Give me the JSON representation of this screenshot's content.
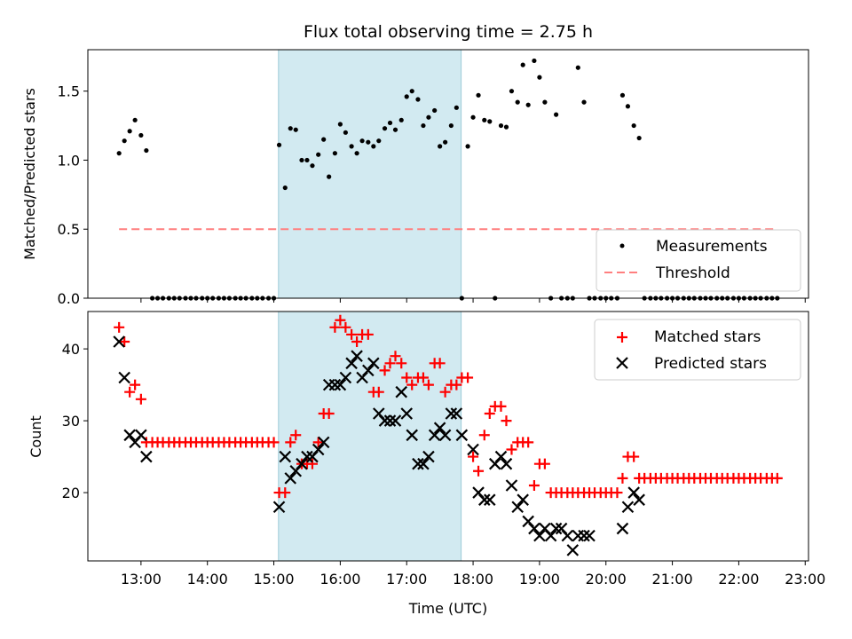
{
  "chart_data": [
    {
      "type": "scatter",
      "title": "Flux total observing time = 2.75 h",
      "xlabel": "",
      "ylabel": "Matched/Predicted stars",
      "ylim": [
        0,
        1.8
      ],
      "yticks": [
        "0.0",
        "0.5",
        "1.0",
        "1.5"
      ],
      "ytick_values": [
        0,
        0.5,
        1.0,
        1.5
      ],
      "xlim": [
        12.2,
        23.05
      ],
      "xticks_values": [
        13,
        14,
        15,
        16,
        17,
        18,
        19,
        20,
        21,
        22,
        23
      ],
      "shaded_span": [
        15.07,
        17.82
      ],
      "shaded_color": "#add8e6",
      "legend_position": "lower-right",
      "series": [
        {
          "name": "Measurements",
          "kind": "scatter",
          "color": "#000000",
          "x": [
            12.67,
            12.75,
            12.83,
            12.91,
            13.0,
            13.08,
            13.17,
            13.25,
            13.33,
            13.42,
            13.5,
            13.58,
            13.67,
            13.75,
            13.83,
            13.92,
            14.0,
            14.08,
            14.17,
            14.25,
            14.33,
            14.42,
            14.5,
            14.58,
            14.67,
            14.75,
            14.83,
            14.92,
            15.0,
            15.08,
            15.17,
            15.25,
            15.33,
            15.42,
            15.5,
            15.58,
            15.67,
            15.75,
            15.83,
            15.92,
            16.0,
            16.08,
            16.17,
            16.25,
            16.33,
            16.42,
            16.5,
            16.58,
            16.67,
            16.75,
            16.83,
            16.92,
            17.0,
            17.08,
            17.17,
            17.25,
            17.33,
            17.42,
            17.5,
            17.58,
            17.67,
            17.75,
            17.83,
            17.92,
            18.0,
            18.08,
            18.17,
            18.25,
            18.33,
            18.42,
            18.5,
            18.58,
            18.67,
            18.75,
            18.83,
            18.92,
            19.0,
            19.08,
            19.17,
            19.25,
            19.33,
            19.42,
            19.5,
            19.58,
            19.67,
            19.75,
            19.83,
            19.92,
            20.0,
            20.08,
            20.17,
            20.25,
            20.33,
            20.42,
            20.5,
            20.58,
            20.67,
            20.75,
            20.83,
            20.92,
            21.0,
            21.08,
            21.17,
            21.25,
            21.33,
            21.42,
            21.5,
            21.58,
            21.67,
            21.75,
            21.83,
            21.92,
            22.0,
            22.08,
            22.17,
            22.25,
            22.33,
            22.42,
            22.5,
            22.58
          ],
          "y": [
            1.05,
            1.14,
            1.21,
            1.29,
            1.18,
            1.07,
            0,
            0,
            0,
            0,
            0,
            0,
            0,
            0,
            0,
            0,
            0,
            0,
            0,
            0,
            0,
            0,
            0,
            0,
            0,
            0,
            0,
            0,
            0,
            1.11,
            0.8,
            1.23,
            1.22,
            1.0,
            1.0,
            0.96,
            1.04,
            1.15,
            0.88,
            1.05,
            1.26,
            1.2,
            1.1,
            1.05,
            1.14,
            1.13,
            1.1,
            1.14,
            1.23,
            1.27,
            1.22,
            1.29,
            1.46,
            1.5,
            1.44,
            1.25,
            1.31,
            1.36,
            1.1,
            1.13,
            1.25,
            1.38,
            0,
            1.1,
            1.31,
            1.47,
            1.29,
            1.28,
            0,
            1.25,
            1.24,
            1.5,
            1.42,
            1.69,
            1.4,
            1.72,
            1.6,
            1.42,
            0,
            1.33,
            0,
            0,
            0,
            1.67,
            1.42,
            0,
            0,
            0,
            0,
            0,
            0,
            1.47,
            1.39,
            1.25,
            1.16,
            0,
            0,
            0,
            0,
            0,
            0,
            0,
            0,
            0,
            0,
            0,
            0,
            0,
            0,
            0,
            0,
            0,
            0,
            0,
            0,
            0,
            0,
            0,
            0,
            0
          ]
        },
        {
          "name": "Threshold",
          "kind": "line",
          "color": "#ff7f7f",
          "x": [
            12.67,
            22.58
          ],
          "y": [
            0.5,
            0.5
          ]
        }
      ]
    },
    {
      "type": "scatter",
      "title": "",
      "xlabel": "Time (UTC)",
      "ylabel": "Count",
      "ylim": [
        10.5,
        45.2
      ],
      "yticks": [
        "20",
        "30",
        "40"
      ],
      "ytick_values": [
        20,
        30,
        40
      ],
      "xlim": [
        12.2,
        23.05
      ],
      "xticks": [
        "13:00",
        "14:00",
        "15:00",
        "16:00",
        "17:00",
        "18:00",
        "19:00",
        "20:00",
        "21:00",
        "22:00",
        "23:00"
      ],
      "xticks_values": [
        13,
        14,
        15,
        16,
        17,
        18,
        19,
        20,
        21,
        22,
        23
      ],
      "shaded_span": [
        15.07,
        17.82
      ],
      "shaded_color": "#add8e6",
      "legend_position": "top-right",
      "series": [
        {
          "name": "Matched stars",
          "kind": "plus",
          "color": "#ff0000",
          "x": [
            12.67,
            12.75,
            12.83,
            12.91,
            13.0,
            13.08,
            13.17,
            13.25,
            13.33,
            13.42,
            13.5,
            13.58,
            13.67,
            13.75,
            13.83,
            13.92,
            14.0,
            14.08,
            14.17,
            14.25,
            14.33,
            14.42,
            14.5,
            14.58,
            14.67,
            14.75,
            14.83,
            14.92,
            15.0,
            15.08,
            15.17,
            15.25,
            15.33,
            15.42,
            15.5,
            15.58,
            15.67,
            15.75,
            15.83,
            15.92,
            16.0,
            16.08,
            16.17,
            16.25,
            16.33,
            16.42,
            16.5,
            16.58,
            16.67,
            16.75,
            16.83,
            16.92,
            17.0,
            17.08,
            17.17,
            17.25,
            17.33,
            17.42,
            17.5,
            17.58,
            17.67,
            17.75,
            17.83,
            17.92,
            18.0,
            18.08,
            18.17,
            18.25,
            18.33,
            18.42,
            18.5,
            18.58,
            18.67,
            18.75,
            18.83,
            18.92,
            19.0,
            19.08,
            19.17,
            19.25,
            19.33,
            19.42,
            19.5,
            19.58,
            19.67,
            19.75,
            19.83,
            19.92,
            20.0,
            20.08,
            20.17,
            20.25,
            20.33,
            20.42,
            20.5,
            20.58,
            20.67,
            20.75,
            20.83,
            20.92,
            21.0,
            21.08,
            21.17,
            21.25,
            21.33,
            21.42,
            21.5,
            21.58,
            21.67,
            21.75,
            21.83,
            21.92,
            22.0,
            22.08,
            22.17,
            22.25,
            22.33,
            22.42,
            22.5,
            22.58
          ],
          "y": [
            43,
            41,
            34,
            35,
            33,
            27,
            27,
            27,
            27,
            27,
            27,
            27,
            27,
            27,
            27,
            27,
            27,
            27,
            27,
            27,
            27,
            27,
            27,
            27,
            27,
            27,
            27,
            27,
            27,
            20,
            20,
            27,
            28,
            24,
            24,
            24,
            27,
            31,
            31,
            43,
            44,
            43,
            42,
            41,
            42,
            42,
            34,
            34,
            37,
            38,
            39,
            38,
            36,
            35,
            36,
            36,
            35,
            38,
            38,
            34,
            35,
            35,
            36,
            36,
            25,
            23,
            28,
            31,
            32,
            32,
            30,
            26,
            27,
            27,
            27,
            21,
            24,
            24,
            20,
            20,
            20,
            20,
            20,
            20,
            20,
            20,
            20,
            20,
            20,
            20,
            20,
            22,
            25,
            25,
            22,
            22,
            22,
            22,
            22,
            22,
            22,
            22,
            22,
            22,
            22,
            22,
            22,
            22,
            22,
            22,
            22,
            22,
            22,
            22,
            22,
            22,
            22,
            22,
            22,
            22
          ]
        },
        {
          "name": "Predicted stars",
          "kind": "x",
          "color": "#000000",
          "x": [
            12.67,
            12.75,
            12.83,
            12.91,
            13.0,
            13.08,
            15.08,
            15.17,
            15.25,
            15.33,
            15.42,
            15.5,
            15.58,
            15.67,
            15.75,
            15.83,
            15.92,
            16.0,
            16.08,
            16.17,
            16.25,
            16.33,
            16.42,
            16.5,
            16.58,
            16.67,
            16.75,
            16.83,
            16.92,
            17.0,
            17.08,
            17.17,
            17.25,
            17.33,
            17.42,
            17.5,
            17.58,
            17.67,
            17.75,
            17.83,
            18.0,
            18.08,
            18.17,
            18.25,
            18.33,
            18.42,
            18.5,
            18.58,
            18.67,
            18.75,
            18.83,
            18.92,
            19.0,
            19.08,
            19.17,
            19.25,
            19.33,
            19.42,
            19.5,
            19.58,
            19.67,
            19.75,
            20.25,
            20.33,
            20.42,
            20.5
          ],
          "y": [
            41,
            36,
            28,
            27,
            28,
            25,
            18,
            25,
            22,
            23,
            24,
            25,
            25,
            26,
            27,
            35,
            35,
            35,
            36,
            38,
            39,
            36,
            37,
            38,
            31,
            30,
            30,
            30,
            34,
            31,
            28,
            24,
            24,
            25,
            28,
            29,
            28,
            31,
            31,
            28,
            26,
            20,
            19,
            19,
            24,
            25,
            24,
            21,
            18,
            19,
            16,
            15,
            14,
            15,
            14,
            15,
            15,
            14,
            12,
            14,
            14,
            14,
            15,
            18,
            20,
            19
          ]
        }
      ]
    }
  ]
}
